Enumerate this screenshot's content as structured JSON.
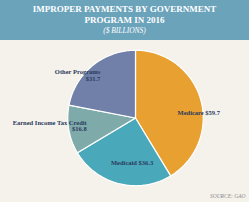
{
  "chart_data": {
    "type": "pie",
    "title": "IMPROPER PAYMENTS BY GOVERNMENT\nPROGRAM IN 2016",
    "subtitle": "($ BILLIONS)",
    "categories": [
      "Medicare $59.7",
      "Medicaid $36.3",
      "Earned Income Tax Credit\n$16.8",
      "Other Programs\n$31.7"
    ],
    "values": [
      59.7,
      36.3,
      16.8,
      31.7
    ],
    "colors": [
      "#E8A030",
      "#4aa8bb",
      "#7faaaa",
      "#7080a8"
    ],
    "data_labels": true,
    "annotations": [
      "SOURCE: GAO"
    ]
  }
}
